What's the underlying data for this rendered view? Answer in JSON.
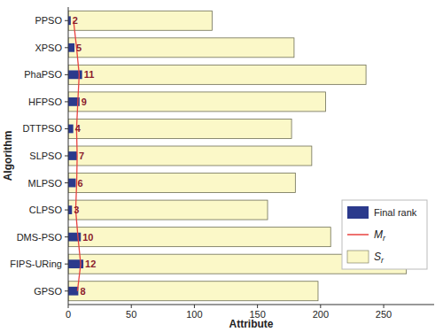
{
  "chart_data": {
    "type": "bar",
    "orientation": "horizontal",
    "x_label": "Attribute",
    "y_label": "Algorithm",
    "categories": [
      "GPSO",
      "FIPS-URing",
      "DMS-PSO",
      "CLPSO",
      "MLPSO",
      "SLPSO",
      "DTTPSO",
      "HFPSO",
      "PhaPSO",
      "XPSO",
      "PPSO"
    ],
    "series": [
      {
        "name": "Final rank",
        "type": "bar",
        "color": "#2b3a8c",
        "data_labels": true,
        "values": [
          8,
          12,
          10,
          3,
          6,
          7,
          4,
          9,
          11,
          5,
          2
        ]
      },
      {
        "name": "Mr",
        "type": "line",
        "color": "#e8423f",
        "values": [
          7.3,
          9.9,
          7.7,
          5.9,
          6.7,
          7.1,
          6.6,
          7.6,
          8.7,
          6.6,
          4.2
        ]
      },
      {
        "name": "Sr",
        "type": "bar",
        "color": "#fbf8c8",
        "values": [
          198,
          268,
          208,
          158,
          180,
          193,
          177,
          204,
          236,
          179,
          114
        ]
      }
    ],
    "xlim": [
      0,
      290
    ],
    "xticks": [
      0,
      50,
      100,
      150,
      200,
      250
    ],
    "grid": false,
    "legend": "right"
  }
}
